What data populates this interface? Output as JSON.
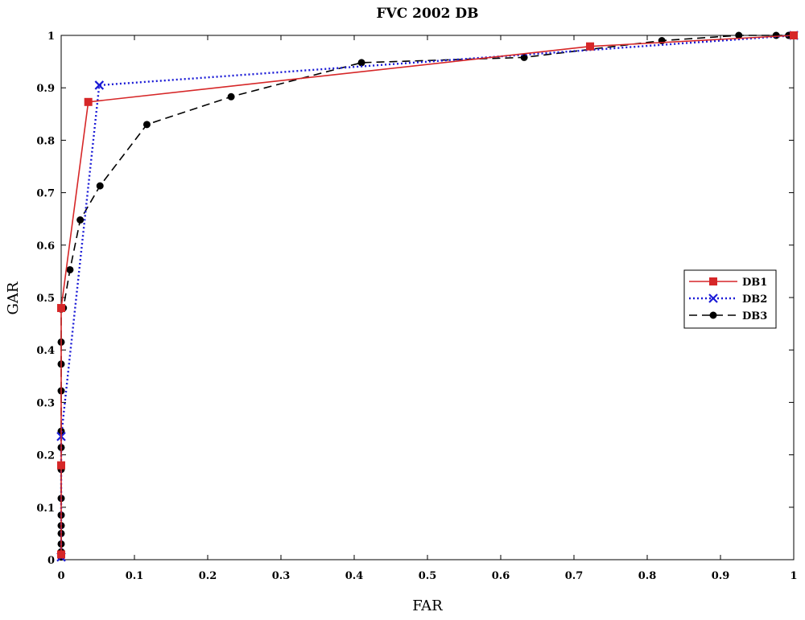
{
  "chart_data": {
    "type": "line",
    "title": "FVC 2002 DB",
    "xlabel": "FAR",
    "ylabel": "GAR",
    "xlim": [
      0,
      1
    ],
    "ylim": [
      0,
      1
    ],
    "xticks": [
      0,
      0.1,
      0.2,
      0.3,
      0.4,
      0.5,
      0.6,
      0.7,
      0.8,
      0.9,
      1
    ],
    "yticks": [
      0,
      0.1,
      0.2,
      0.3,
      0.4,
      0.5,
      0.6,
      0.7,
      0.8,
      0.9,
      1
    ],
    "xtick_labels": [
      "0",
      "0.1",
      "0.2",
      "0.3",
      "0.4",
      "0.5",
      "0.6",
      "0.7",
      "0.8",
      "0.9",
      "1"
    ],
    "ytick_labels": [
      "0",
      "0.1",
      "0.2",
      "0.3",
      "0.4",
      "0.5",
      "0.6",
      "0.7",
      "0.8",
      "0.9",
      "1"
    ],
    "grid": false,
    "legend_position": "right",
    "series": [
      {
        "name": "DB1",
        "color": "#d62728",
        "line_style": "solid",
        "marker": "square",
        "x": [
          0,
          0,
          0,
          0.037,
          0.722,
          1
        ],
        "y": [
          0.01,
          0.18,
          0.48,
          0.873,
          0.979,
          1
        ]
      },
      {
        "name": "DB2",
        "color": "#1a1ad6",
        "line_style": "dotted",
        "marker": "x",
        "x": [
          0,
          0,
          0.052,
          1
        ],
        "y": [
          0.005,
          0.235,
          0.905,
          1
        ]
      },
      {
        "name": "DB3",
        "color": "#000000",
        "line_style": "dashed",
        "marker": "dot",
        "x": [
          0,
          0,
          0,
          0,
          0,
          0,
          0,
          0,
          0,
          0,
          0,
          0,
          0,
          0,
          0.003,
          0.012,
          0.026,
          0.053,
          0.117,
          0.232,
          0.41,
          0.632,
          0.82,
          0.925,
          0.976,
          0.993,
          1
        ],
        "y": [
          0.005,
          0.015,
          0.03,
          0.05,
          0.065,
          0.085,
          0.117,
          0.172,
          0.214,
          0.245,
          0.322,
          0.373,
          0.415,
          0.478,
          0.48,
          0.553,
          0.648,
          0.713,
          0.83,
          0.883,
          0.948,
          0.958,
          0.99,
          1,
          1,
          1,
          1
        ]
      }
    ]
  }
}
